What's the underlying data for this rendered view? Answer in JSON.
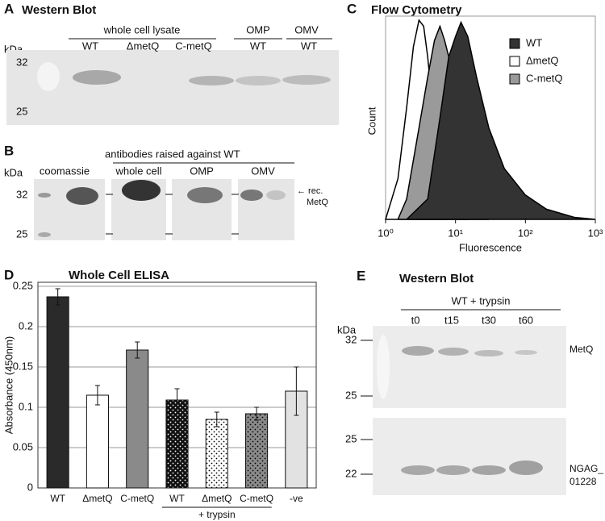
{
  "panels": {
    "a": {
      "letter": "A",
      "title": "Western Blot",
      "unit": "kDa",
      "markers": [
        "32",
        "25"
      ],
      "groups": [
        "whole cell lysate",
        "OMP",
        "OMV"
      ],
      "lanes": [
        "WT",
        "ΔmetQ",
        "C-metQ",
        "WT",
        "WT"
      ]
    },
    "b": {
      "letter": "B",
      "unit": "kDa",
      "markers": [
        "32",
        "25"
      ],
      "header": "antibodies raised against WT",
      "lanes": [
        "coomassie",
        "whole cell",
        "OMP",
        "OMV"
      ],
      "annotation": [
        "← rec.",
        "MetQ"
      ]
    },
    "e": {
      "letter": "E",
      "title": "Western Blot",
      "unit": "kDa",
      "header": "WT + trypsin",
      "lanes": [
        "t0",
        "t15",
        "t30",
        "t60"
      ],
      "upper_markers": [
        "32",
        "25"
      ],
      "lower_markers": [
        "25",
        "22"
      ],
      "labels": [
        "MetQ",
        "NGAG_",
        "01228"
      ]
    }
  },
  "chart_data": [
    {
      "letter": "C",
      "type": "area",
      "title": "Flow Cytometry",
      "x_label": "Fluorescence",
      "y_label": "Count",
      "log_x": true,
      "xlim": [
        1,
        1000
      ],
      "xticks": [
        {
          "value": 1,
          "label": "10⁰"
        },
        {
          "value": 10,
          "label": "10¹"
        },
        {
          "value": 100,
          "label": "10²"
        },
        {
          "value": 1000,
          "label": "10³"
        }
      ],
      "ylim": [
        0,
        1
      ],
      "legend": "upper right",
      "series": [
        {
          "name": "WT",
          "color": "#333333",
          "x": [
            2,
            4,
            6,
            8,
            10,
            12,
            15,
            20,
            30,
            50,
            100,
            200,
            500,
            1000
          ],
          "values": [
            0,
            0.1,
            0.5,
            0.8,
            0.9,
            0.97,
            0.9,
            0.7,
            0.45,
            0.25,
            0.12,
            0.05,
            0.01,
            0
          ]
        },
        {
          "name": "ΔmetQ",
          "color": "#ffffff",
          "x": [
            1,
            1.5,
            2,
            2.5,
            3,
            3.5,
            4,
            5,
            6,
            8,
            10,
            15
          ],
          "values": [
            0,
            0.2,
            0.55,
            0.85,
            0.98,
            0.95,
            0.8,
            0.45,
            0.2,
            0.06,
            0.02,
            0
          ]
        },
        {
          "name": "C-metQ",
          "color": "#9a9a9a",
          "x": [
            1.5,
            2,
            3,
            4,
            5,
            6,
            7,
            8,
            10,
            15,
            20,
            30
          ],
          "values": [
            0,
            0.1,
            0.45,
            0.7,
            0.88,
            0.95,
            0.88,
            0.8,
            0.55,
            0.2,
            0.06,
            0
          ]
        }
      ]
    },
    {
      "letter": "D",
      "type": "bar",
      "title": "Whole Cell ELISA",
      "y_label": "Absorbance (450nm)",
      "categories": [
        "WT",
        "ΔmetQ",
        "C-metQ",
        "WT",
        "ΔmetQ",
        "C-metQ",
        "-ve"
      ],
      "values": [
        0.237,
        0.115,
        0.171,
        0.109,
        0.085,
        0.092,
        0.12
      ],
      "errors": [
        0.01,
        0.012,
        0.01,
        0.014,
        0.009,
        0.008,
        0.03
      ],
      "colors": [
        "#2a2a2a",
        "#ffffff",
        "#8a8a8a",
        "#111111",
        "#ffffff",
        "#8a8a8a",
        "#e2e2e2"
      ],
      "dotted": [
        false,
        false,
        false,
        true,
        true,
        true,
        false
      ],
      "annotation": "+ trypsin",
      "ylim": [
        0,
        0.255
      ],
      "yticks": [
        0,
        0.05,
        0.1,
        0.15,
        0.2,
        0.25
      ],
      "grid": true
    }
  ]
}
